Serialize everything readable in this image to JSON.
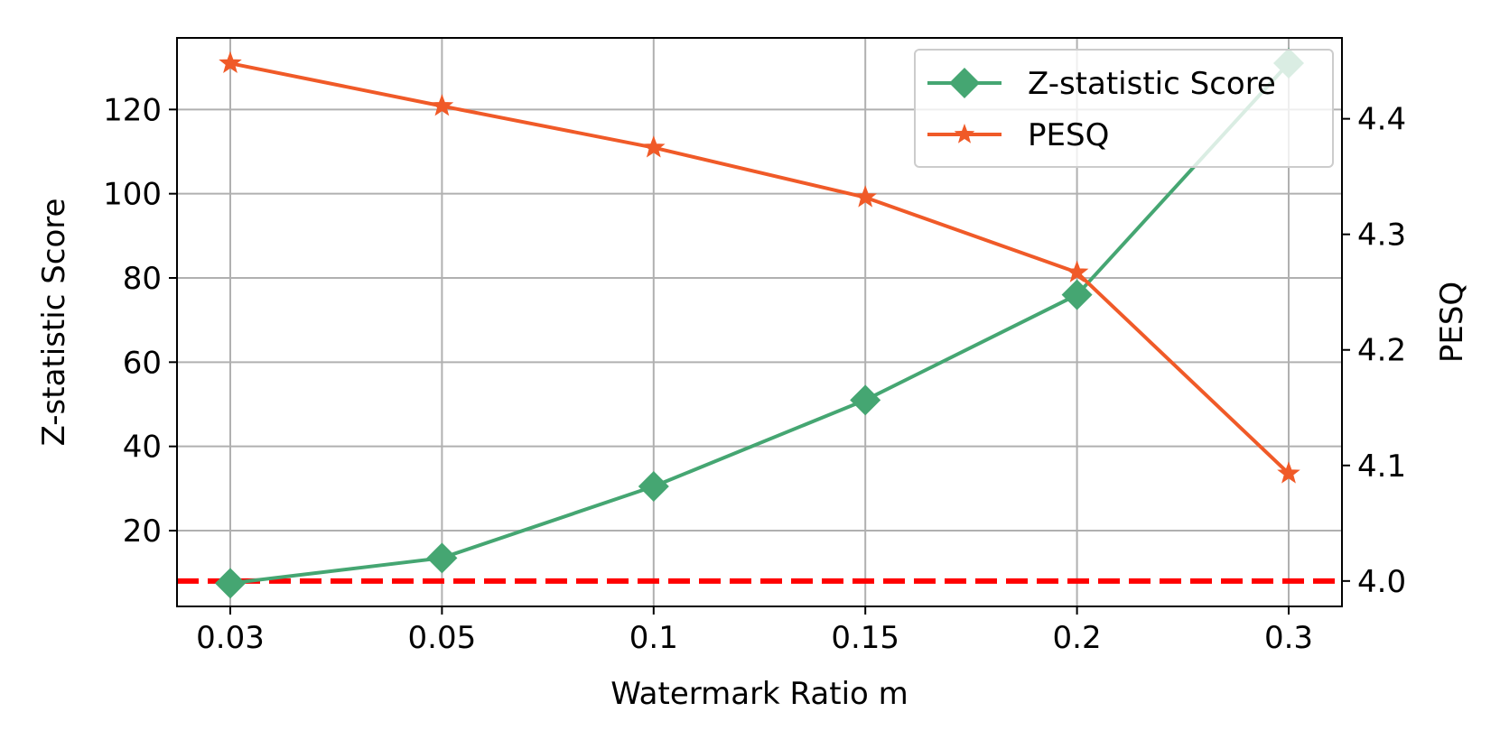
{
  "chart_data": {
    "type": "line",
    "xlabel": "Watermark Ratio m",
    "ylabel": "Z-statistic Score",
    "y2label": "PESQ",
    "categories": [
      "0.03",
      "0.05",
      "0.1",
      "0.15",
      "0.2",
      "0.3"
    ],
    "ylim": [
      2,
      137
    ],
    "yticks": [
      20,
      40,
      60,
      80,
      100,
      120
    ],
    "ytick_labels": [
      "20",
      "40",
      "60",
      "80",
      "100",
      "120"
    ],
    "y2lim": [
      3.978,
      4.47
    ],
    "y2ticks": [
      4.0,
      4.1,
      4.2,
      4.3,
      4.4
    ],
    "y2tick_labels": [
      "4.0",
      "4.1",
      "4.2",
      "4.3",
      "4.4"
    ],
    "grid": true,
    "legend": {
      "position": "top-right"
    },
    "series": [
      {
        "name": "Z-statistic Score",
        "axis": "left",
        "marker": "diamond",
        "color": "#45a672",
        "values": [
          7.5,
          13.5,
          30.5,
          51,
          76,
          131
        ]
      },
      {
        "name": "PESQ",
        "axis": "right",
        "marker": "star",
        "color": "#f05a28",
        "values": [
          4.448,
          4.411,
          4.375,
          4.332,
          4.267,
          4.093
        ]
      }
    ],
    "threshold": {
      "axis": "right",
      "value": 4.0,
      "style": "dashed",
      "color": "#ff0000"
    }
  }
}
